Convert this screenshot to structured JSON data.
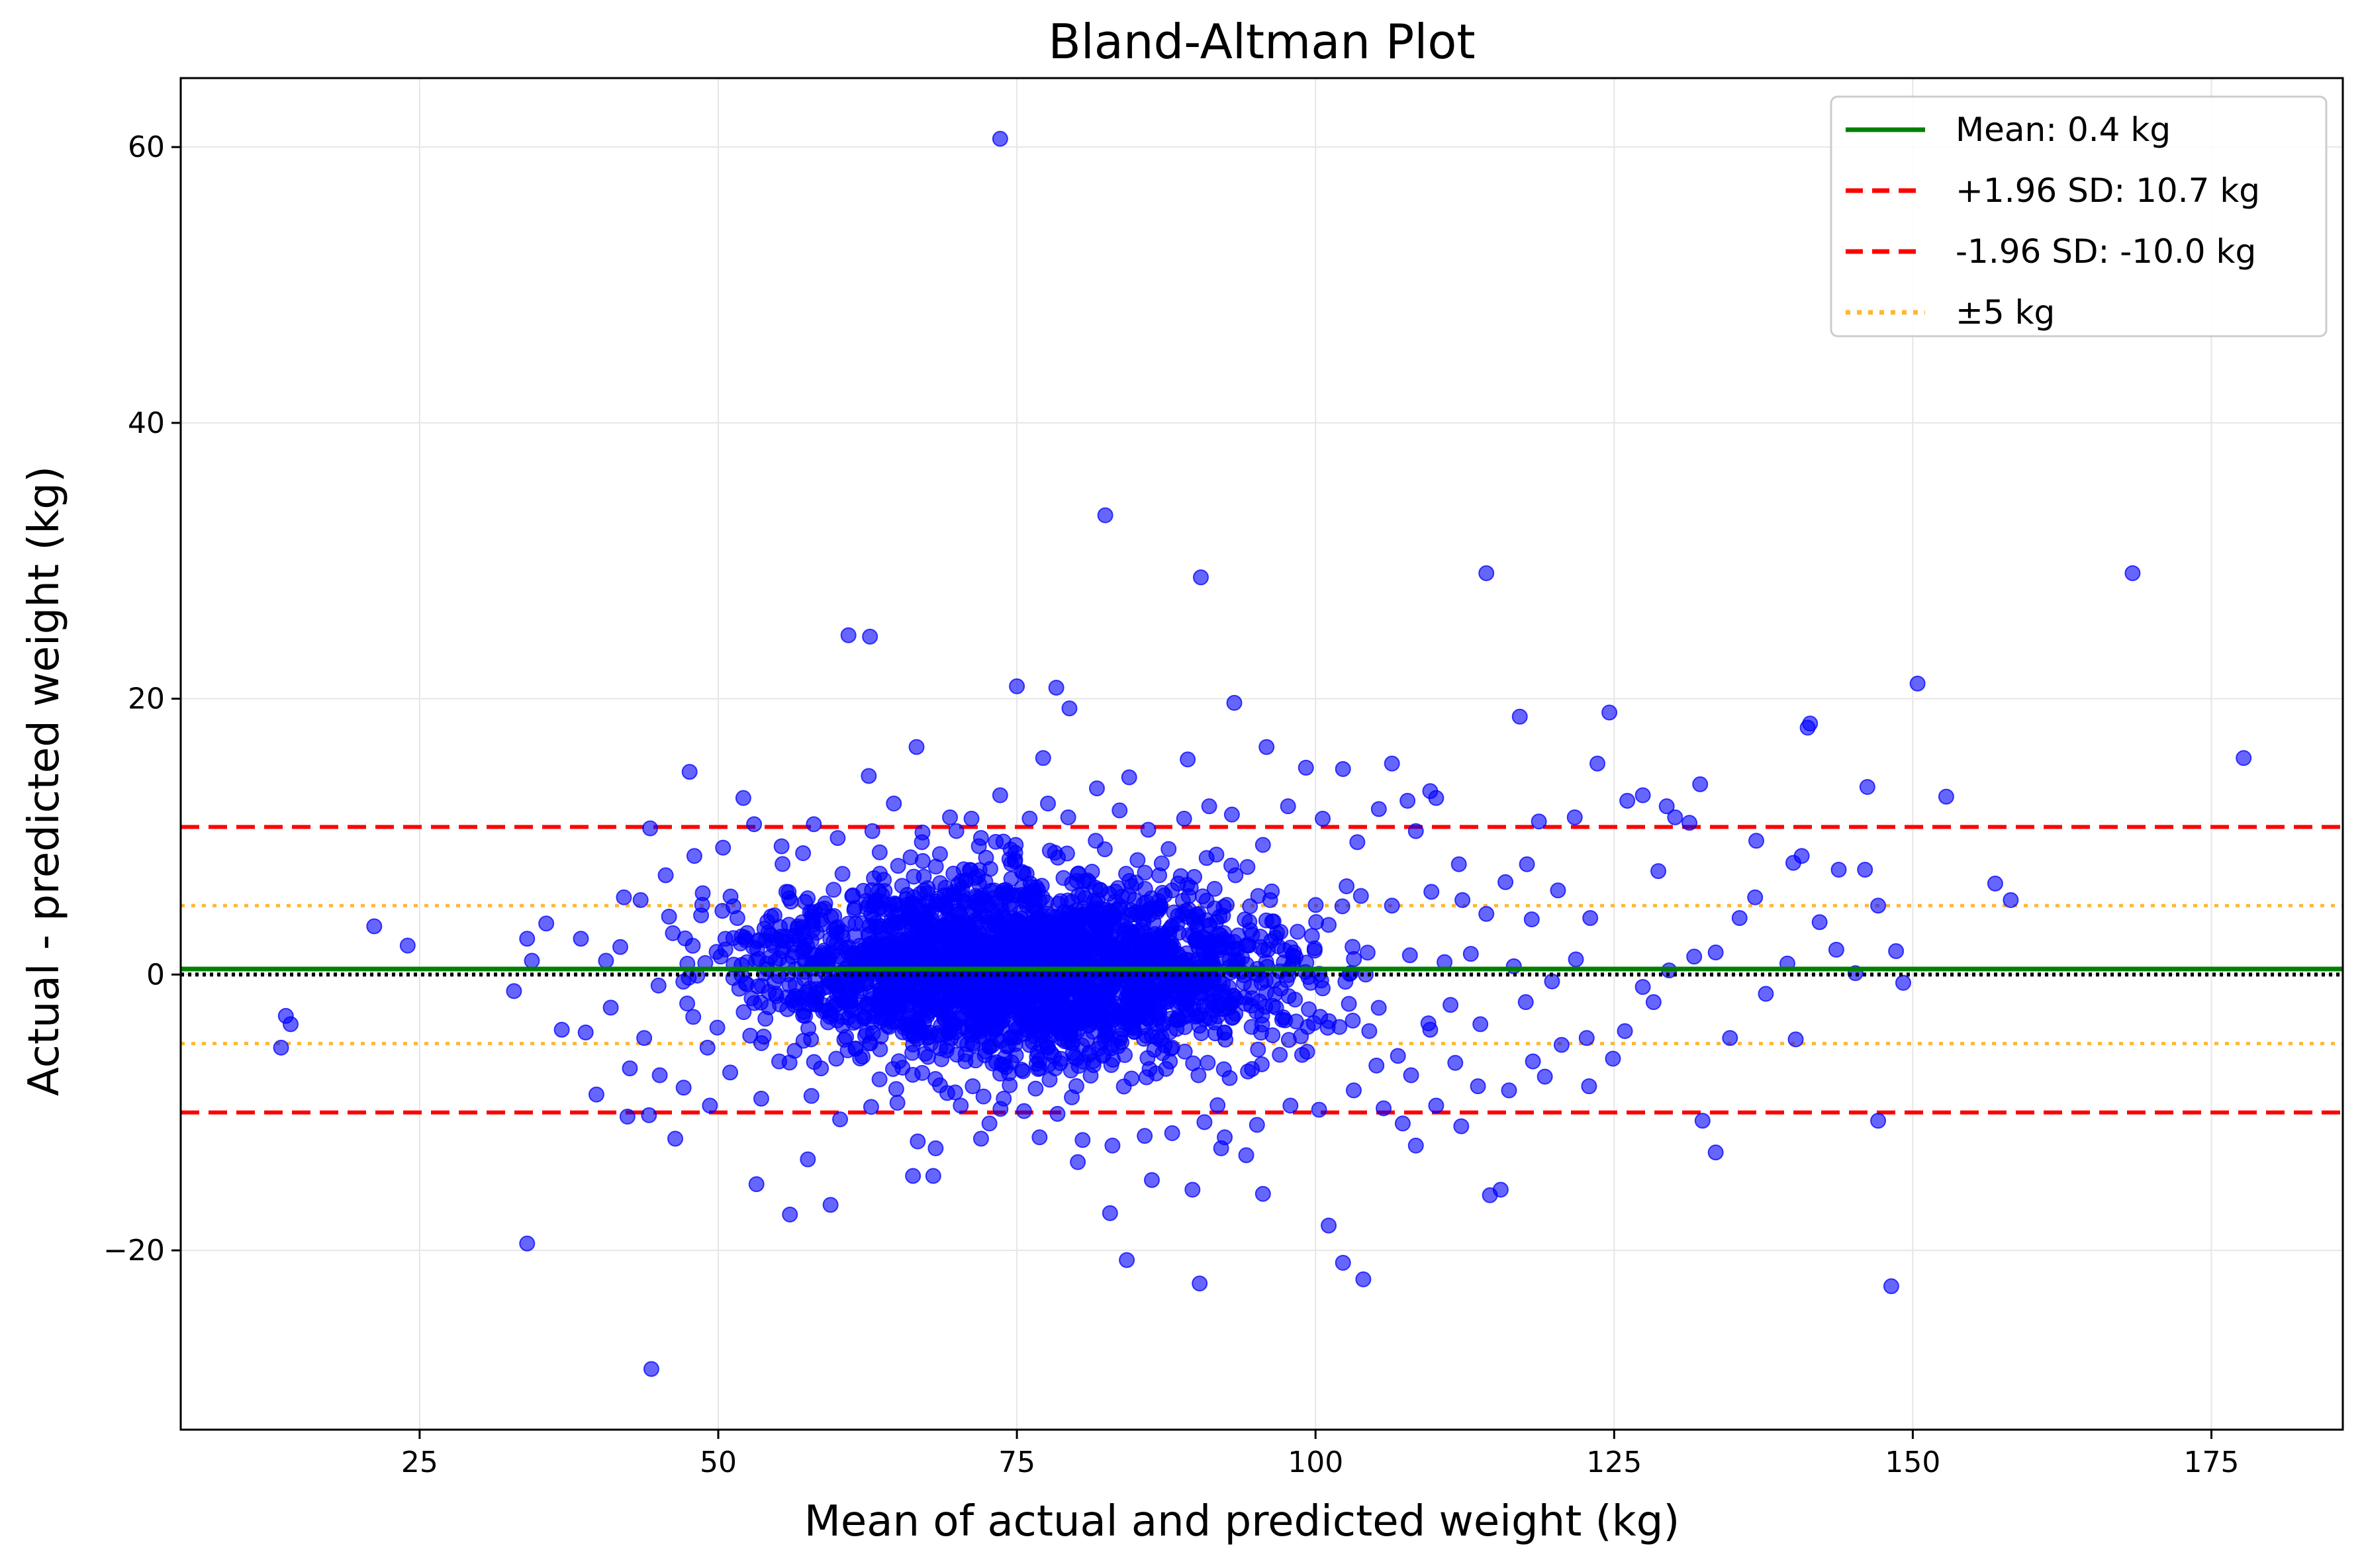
{
  "chart_data": {
    "type": "scatter",
    "title": "Bland-Altman Plot",
    "xlabel": "Mean of actual and predicted weight (kg)",
    "ylabel": "Actual - predicted weight (kg)",
    "xlim": [
      5,
      186
    ],
    "ylim": [
      -33,
      65
    ],
    "x_ticks": [
      25,
      50,
      75,
      100,
      125,
      150,
      175
    ],
    "y_ticks": [
      -20,
      0,
      20,
      40,
      60
    ],
    "y_tick_labels": [
      "−20",
      "0",
      "20",
      "40",
      "60"
    ],
    "grid": true,
    "legend_position": "top-right",
    "colors": {
      "points": "#0000ff",
      "mean_line": "#008000",
      "sd_lines": "#ff0000",
      "band_lines": "#ffb732",
      "zero_line": "#000000"
    },
    "reference_lines": {
      "mean": 0.4,
      "upper_sd": 10.7,
      "lower_sd": -10.0,
      "band_upper": 5,
      "band_lower": -5,
      "zero": 0
    },
    "legend": [
      {
        "label": "Mean: 0.4 kg",
        "style": "solid",
        "color": "#008000"
      },
      {
        "label": "+1.96 SD: 10.7 kg",
        "style": "dashed",
        "color": "#ff0000"
      },
      {
        "label": "-1.96 SD: -10.0 kg",
        "style": "dashed",
        "color": "#ff0000"
      },
      {
        "label": "±5 kg",
        "style": "dotted",
        "color": "#ffb732"
      }
    ],
    "series": [
      {
        "points": [
          [
            73.6,
            60.6
          ],
          [
            82.4,
            33.3
          ],
          [
            90.4,
            28.8
          ],
          [
            114.3,
            29.1
          ],
          [
            168.4,
            29.1
          ],
          [
            60.9,
            24.6
          ],
          [
            62.7,
            24.5
          ],
          [
            75.0,
            20.9
          ],
          [
            78.3,
            20.8
          ],
          [
            79.4,
            19.3
          ],
          [
            93.2,
            19.7
          ],
          [
            150.4,
            21.1
          ],
          [
            117.1,
            18.7
          ],
          [
            124.6,
            19.0
          ],
          [
            141.2,
            17.9
          ],
          [
            141.4,
            18.2
          ],
          [
            177.7,
            15.7
          ],
          [
            47.6,
            14.7
          ],
          [
            66.6,
            16.5
          ],
          [
            77.2,
            15.7
          ],
          [
            89.3,
            15.6
          ],
          [
            95.9,
            16.5
          ],
          [
            99.2,
            15.0
          ],
          [
            106.4,
            15.3
          ],
          [
            123.6,
            15.3
          ],
          [
            146.2,
            13.6
          ],
          [
            152.8,
            12.9
          ],
          [
            62.6,
            14.4
          ],
          [
            84.4,
            14.3
          ],
          [
            102.3,
            14.9
          ],
          [
            129.4,
            12.2
          ],
          [
            132.2,
            13.8
          ],
          [
            52.1,
            12.8
          ],
          [
            109.6,
            13.3
          ],
          [
            110.1,
            12.8
          ],
          [
            127.4,
            13.0
          ],
          [
            21.2,
            3.5
          ],
          [
            24.0,
            2.1
          ],
          [
            13.8,
            -3.0
          ],
          [
            14.2,
            -3.6
          ],
          [
            13.4,
            -5.3
          ],
          [
            32.9,
            -1.2
          ],
          [
            34.0,
            2.6
          ],
          [
            34.4,
            1.0
          ],
          [
            35.6,
            3.7
          ],
          [
            36.9,
            -4.0
          ],
          [
            38.5,
            2.6
          ],
          [
            38.9,
            -4.2
          ],
          [
            39.8,
            -8.7
          ],
          [
            41.8,
            2.0
          ],
          [
            42.4,
            -10.3
          ],
          [
            44.2,
            -10.2
          ],
          [
            44.3,
            10.6
          ],
          [
            46.4,
            -11.9
          ],
          [
            34.0,
            -19.5
          ],
          [
            44.4,
            -28.6
          ],
          [
            53.2,
            -15.2
          ],
          [
            56.0,
            -17.4
          ],
          [
            59.4,
            -16.7
          ],
          [
            57.5,
            -13.4
          ],
          [
            68.0,
            -14.6
          ],
          [
            66.3,
            -14.6
          ],
          [
            72.0,
            -11.9
          ],
          [
            76.9,
            -11.8
          ],
          [
            80.1,
            -13.6
          ],
          [
            82.8,
            -17.3
          ],
          [
            84.2,
            -20.7
          ],
          [
            90.3,
            -22.4
          ],
          [
            86.3,
            -14.9
          ],
          [
            89.7,
            -15.6
          ],
          [
            92.1,
            -12.6
          ],
          [
            94.2,
            -13.1
          ],
          [
            95.6,
            -15.9
          ],
          [
            101.1,
            -18.2
          ],
          [
            102.3,
            -20.9
          ],
          [
            104.0,
            -22.1
          ],
          [
            108.4,
            -12.4
          ],
          [
            112.2,
            -11.0
          ],
          [
            114.6,
            -16.0
          ],
          [
            115.5,
            -15.6
          ],
          [
            107.3,
            -10.8
          ],
          [
            119.2,
            -7.4
          ],
          [
            122.9,
            -8.1
          ],
          [
            124.9,
            -6.1
          ],
          [
            128.3,
            -2.0
          ],
          [
            132.4,
            -10.6
          ],
          [
            133.5,
            -12.9
          ],
          [
            134.7,
            -4.6
          ],
          [
            140.2,
            -4.7
          ],
          [
            147.1,
            -10.6
          ],
          [
            148.2,
            -22.6
          ],
          [
            149.2,
            -0.6
          ],
          [
            148.6,
            1.7
          ],
          [
            145.2,
            0.1
          ],
          [
            143.6,
            1.8
          ],
          [
            137.7,
            -1.4
          ],
          [
            139.5,
            0.8
          ],
          [
            136.8,
            5.6
          ],
          [
            135.5,
            4.1
          ],
          [
            140.7,
            8.6
          ],
          [
            140.0,
            8.1
          ],
          [
            143.8,
            7.6
          ],
          [
            142.2,
            3.8
          ],
          [
            147.1,
            5.0
          ],
          [
            146.0,
            7.6
          ],
          [
            156.9,
            6.6
          ],
          [
            158.2,
            5.4
          ],
          [
            136.9,
            9.7
          ],
          [
            131.3,
            11.0
          ],
          [
            130.1,
            11.4
          ],
          [
            128.7,
            7.5
          ],
          [
            126.1,
            12.6
          ],
          [
            121.7,
            11.4
          ],
          [
            118.7,
            11.1
          ],
          [
            117.7,
            8.0
          ],
          [
            115.9,
            6.7
          ],
          [
            112.0,
            8.0
          ],
          [
            108.4,
            10.4
          ],
          [
            107.7,
            12.6
          ],
          [
            105.3,
            12.0
          ],
          [
            103.5,
            9.6
          ],
          [
            100.6,
            11.3
          ],
          [
            97.7,
            12.2
          ],
          [
            95.6,
            9.4
          ],
          [
            93.0,
            11.6
          ],
          [
            91.1,
            12.2
          ],
          [
            89.0,
            11.3
          ],
          [
            86.0,
            10.5
          ],
          [
            83.6,
            11.9
          ],
          [
            81.7,
            13.5
          ],
          [
            79.3,
            11.4
          ],
          [
            77.6,
            12.4
          ],
          [
            73.6,
            13.0
          ],
          [
            71.2,
            11.3
          ],
          [
            69.4,
            11.4
          ],
          [
            67.1,
            10.3
          ],
          [
            64.7,
            12.4
          ],
          [
            62.9,
            10.4
          ],
          [
            60.0,
            9.9
          ],
          [
            58.0,
            10.9
          ],
          [
            55.3,
            9.3
          ],
          [
            53.0,
            10.9
          ],
          [
            50.4,
            9.2
          ],
          [
            48.0,
            8.6
          ],
          [
            45.6,
            7.2
          ],
          [
            43.5,
            5.4
          ],
          [
            42.1,
            5.6
          ],
          [
            40.6,
            1.0
          ],
          [
            41.0,
            -2.4
          ],
          [
            42.6,
            -6.8
          ],
          [
            43.8,
            -4.6
          ],
          [
            45.1,
            -7.3
          ],
          [
            47.1,
            -8.2
          ],
          [
            49.3,
            -9.5
          ],
          [
            51.0,
            -7.1
          ],
          [
            53.6,
            -9.0
          ],
          [
            55.1,
            -6.3
          ],
          [
            57.8,
            -8.8
          ],
          [
            60.2,
            -10.5
          ],
          [
            62.8,
            -9.6
          ],
          [
            64.9,
            -8.3
          ],
          [
            66.7,
            -12.1
          ],
          [
            68.2,
            -12.6
          ],
          [
            70.3,
            -9.5
          ],
          [
            72.7,
            -10.8
          ],
          [
            75.6,
            -9.9
          ],
          [
            78.4,
            -10.1
          ],
          [
            80.5,
            -12.0
          ],
          [
            83.0,
            -12.4
          ],
          [
            85.7,
            -11.7
          ],
          [
            88.0,
            -11.5
          ],
          [
            90.7,
            -10.7
          ],
          [
            92.4,
            -11.8
          ],
          [
            95.1,
            -10.9
          ],
          [
            97.9,
            -9.5
          ],
          [
            100.3,
            -9.8
          ],
          [
            103.2,
            -8.4
          ],
          [
            105.7,
            -9.7
          ],
          [
            108.0,
            -7.3
          ],
          [
            110.1,
            -9.5
          ],
          [
            111.7,
            -6.4
          ],
          [
            113.6,
            -8.1
          ],
          [
            116.2,
            -8.4
          ],
          [
            118.2,
            -6.3
          ],
          [
            120.6,
            -5.1
          ],
          [
            122.7,
            -4.6
          ],
          [
            125.9,
            -4.1
          ],
          [
            127.4,
            -0.9
          ],
          [
            129.6,
            0.3
          ],
          [
            131.7,
            1.3
          ],
          [
            133.5,
            1.6
          ],
          [
            123.0,
            4.1
          ],
          [
            120.3,
            6.1
          ],
          [
            118.1,
            4.0
          ],
          [
            114.3,
            4.4
          ],
          [
            112.3,
            5.4
          ],
          [
            109.7,
            6.0
          ],
          [
            106.4,
            5.0
          ],
          [
            103.8,
            5.7
          ],
          [
            101.1,
            3.6
          ],
          [
            98.5,
            3.1
          ],
          [
            96.2,
            5.4
          ],
          [
            93.3,
            7.2
          ],
          [
            113.8,
            -3.6
          ],
          [
            111.3,
            -2.2
          ],
          [
            109.6,
            -4.0
          ],
          [
            106.9,
            -5.9
          ],
          [
            104.5,
            -4.1
          ],
          [
            102.0,
            -3.8
          ],
          [
            99.3,
            -5.6
          ],
          [
            96.4,
            -4.4
          ],
          [
            117.6,
            -2.0
          ],
          [
            119.8,
            -0.5
          ],
          [
            121.8,
            1.1
          ],
          [
            116.6,
            0.6
          ],
          [
            113.0,
            1.5
          ],
          [
            110.8,
            0.9
          ],
          [
            107.9,
            1.4
          ],
          [
            104.2,
            0.0
          ],
          [
            100.6,
            -1.0
          ],
          [
            97.8,
            0.4
          ],
          [
            94.6,
            -0.9
          ]
        ],
        "cluster_points": [
          [
            50.2,
            1.3
          ],
          [
            52.4,
            -0.7
          ],
          [
            54.6,
            2.1
          ],
          [
            56.3,
            -1.8
          ],
          [
            57.9,
            3.2
          ],
          [
            59.5,
            -2.9
          ],
          [
            61.2,
            0.8
          ],
          [
            62.8,
            4.4
          ],
          [
            64.3,
            -3.8
          ],
          [
            65.7,
            1.9
          ],
          [
            67.0,
            -0.4
          ],
          [
            68.3,
            5.3
          ],
          [
            69.5,
            -4.6
          ],
          [
            70.8,
            2.7
          ],
          [
            72.0,
            -1.5
          ],
          [
            73.1,
            6.1
          ],
          [
            74.3,
            -5.2
          ],
          [
            75.5,
            0.6
          ],
          [
            76.6,
            3.9
          ],
          [
            77.7,
            -2.8
          ],
          [
            78.9,
            7.0
          ],
          [
            80.0,
            -6.1
          ],
          [
            81.2,
            1.7
          ],
          [
            82.4,
            -0.9
          ],
          [
            83.6,
            4.8
          ],
          [
            84.8,
            -3.4
          ],
          [
            86.0,
            2.5
          ],
          [
            87.2,
            -5.7
          ],
          [
            88.5,
            6.6
          ],
          [
            89.8,
            -1.1
          ],
          [
            91.1,
            3.5
          ],
          [
            92.4,
            -4.2
          ],
          [
            93.8,
            0.2
          ],
          [
            95.2,
            5.7
          ],
          [
            96.7,
            -2.4
          ],
          [
            98.2,
            1.6
          ],
          [
            51.6,
            4.1
          ],
          [
            53.8,
            -4.5
          ],
          [
            55.7,
            6.0
          ],
          [
            58.6,
            -6.8
          ],
          [
            60.4,
            7.3
          ],
          [
            63.5,
            -7.6
          ],
          [
            66.1,
            8.5
          ],
          [
            71.3,
            -8.1
          ],
          [
            74.9,
            9.4
          ],
          [
            79.6,
            -8.9
          ],
          [
            85.1,
            8.3
          ],
          [
            90.2,
            -7.3
          ],
          [
            94.3,
            7.8
          ],
          [
            54.1,
            0.4
          ],
          [
            61.9,
            -1.2
          ],
          [
            69.0,
            0.9
          ],
          [
            76.1,
            -0.3
          ],
          [
            83.1,
            0.7
          ],
          [
            88.9,
            0.1
          ],
          [
            47.4,
            -2.1
          ],
          [
            46.2,
            3.0
          ],
          [
            45.0,
            -0.8
          ],
          [
            97.3,
            -3.1
          ],
          [
            99.7,
            2.8
          ],
          [
            102.6,
            6.4
          ],
          [
            105.1,
            -6.6
          ],
          [
            49.1,
            -5.3
          ],
          [
            48.7,
            5.9
          ],
          [
            57.1,
            8.8
          ],
          [
            65.0,
            -9.3
          ],
          [
            73.9,
            -9.0
          ],
          [
            81.6,
            9.7
          ],
          [
            87.7,
            9.1
          ],
          [
            91.7,
            8.7
          ]
        ]
      }
    ]
  }
}
